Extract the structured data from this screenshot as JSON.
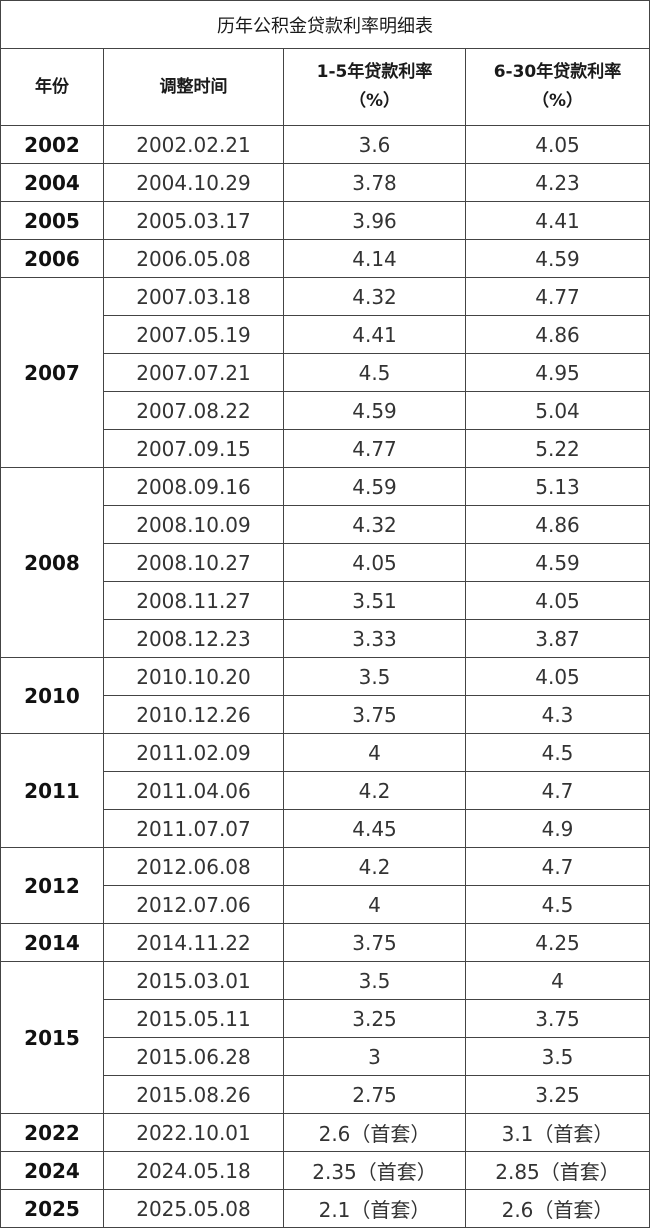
{
  "title": "历年公积金贷款利率明细表",
  "headers": {
    "year": "年份",
    "date": "调整时间",
    "rate_short_line1": "1-5年贷款利率",
    "rate_short_line2": "（%）",
    "rate_long_line1": "6-30年贷款利率",
    "rate_long_line2": "（%）"
  },
  "groups": [
    {
      "year": "2002",
      "rows": [
        {
          "date": "2002.02.21",
          "short": "3.6",
          "long": "4.05"
        }
      ]
    },
    {
      "year": "2004",
      "rows": [
        {
          "date": "2004.10.29",
          "short": "3.78",
          "long": "4.23"
        }
      ]
    },
    {
      "year": "2005",
      "rows": [
        {
          "date": "2005.03.17",
          "short": "3.96",
          "long": "4.41"
        }
      ]
    },
    {
      "year": "2006",
      "rows": [
        {
          "date": "2006.05.08",
          "short": "4.14",
          "long": "4.59"
        }
      ]
    },
    {
      "year": "2007",
      "rows": [
        {
          "date": "2007.03.18",
          "short": "4.32",
          "long": "4.77"
        },
        {
          "date": "2007.05.19",
          "short": "4.41",
          "long": "4.86"
        },
        {
          "date": "2007.07.21",
          "short": "4.5",
          "long": "4.95"
        },
        {
          "date": "2007.08.22",
          "short": "4.59",
          "long": "5.04"
        },
        {
          "date": "2007.09.15",
          "short": "4.77",
          "long": "5.22"
        }
      ]
    },
    {
      "year": "2008",
      "rows": [
        {
          "date": "2008.09.16",
          "short": "4.59",
          "long": "5.13"
        },
        {
          "date": "2008.10.09",
          "short": "4.32",
          "long": "4.86"
        },
        {
          "date": "2008.10.27",
          "short": "4.05",
          "long": "4.59"
        },
        {
          "date": "2008.11.27",
          "short": "3.51",
          "long": "4.05"
        },
        {
          "date": "2008.12.23",
          "short": "3.33",
          "long": "3.87"
        }
      ]
    },
    {
      "year": "2010",
      "rows": [
        {
          "date": "2010.10.20",
          "short": "3.5",
          "long": "4.05"
        },
        {
          "date": "2010.12.26",
          "short": "3.75",
          "long": "4.3"
        }
      ]
    },
    {
      "year": "2011",
      "rows": [
        {
          "date": "2011.02.09",
          "short": "4",
          "long": "4.5"
        },
        {
          "date": "2011.04.06",
          "short": "4.2",
          "long": "4.7"
        },
        {
          "date": "2011.07.07",
          "short": "4.45",
          "long": "4.9"
        }
      ]
    },
    {
      "year": "2012",
      "rows": [
        {
          "date": "2012.06.08",
          "short": "4.2",
          "long": "4.7"
        },
        {
          "date": "2012.07.06",
          "short": "4",
          "long": "4.5"
        }
      ]
    },
    {
      "year": "2014",
      "rows": [
        {
          "date": "2014.11.22",
          "short": "3.75",
          "long": "4.25"
        }
      ]
    },
    {
      "year": "2015",
      "rows": [
        {
          "date": "2015.03.01",
          "short": "3.5",
          "long": "4"
        },
        {
          "date": "2015.05.11",
          "short": "3.25",
          "long": "3.75"
        },
        {
          "date": "2015.06.28",
          "short": "3",
          "long": "3.5"
        },
        {
          "date": "2015.08.26",
          "short": "2.75",
          "long": "3.25"
        }
      ]
    },
    {
      "year": "2022",
      "rows": [
        {
          "date": "2022.10.01",
          "short": "2.6（首套）",
          "long": "3.1（首套）"
        }
      ]
    },
    {
      "year": "2024",
      "rows": [
        {
          "date": "2024.05.18",
          "short": "2.35（首套）",
          "long": "2.85（首套）"
        }
      ]
    },
    {
      "year": "2025",
      "rows": [
        {
          "date": "2025.05.08",
          "short": "2.1（首套）",
          "long": "2.6（首套）"
        }
      ]
    }
  ]
}
